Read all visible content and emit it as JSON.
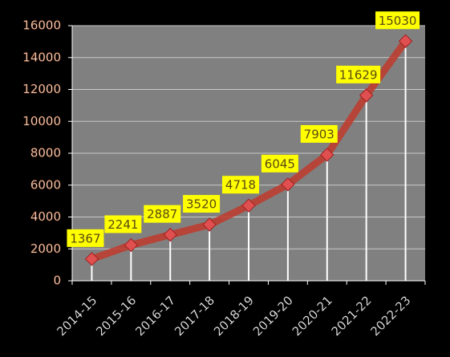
{
  "chart_data": {
    "type": "line",
    "categories": [
      "2014-15",
      "2015-16",
      "2016-17",
      "2017-18",
      "2018-19",
      "2019-20",
      "2020-21",
      "2021-22",
      "2022-23"
    ],
    "values": [
      1367,
      2241,
      2887,
      3520,
      4718,
      6045,
      7903,
      11629,
      15030
    ],
    "color": "#c0392b",
    "ylim": [
      0,
      16000
    ],
    "yticks": [
      0,
      2000,
      4000,
      6000,
      8000,
      10000,
      12000,
      14000,
      16000
    ],
    "grid": true,
    "drop_lines": true,
    "label_color": "#ffff00"
  }
}
